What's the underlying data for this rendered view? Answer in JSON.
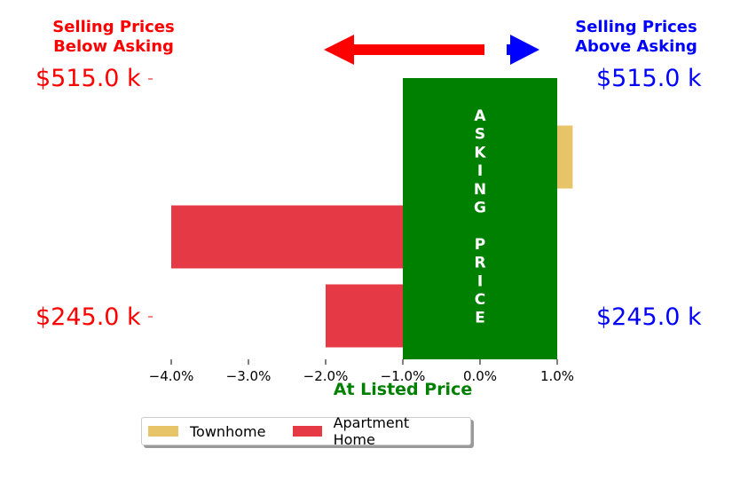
{
  "header": {
    "left_line1": "Selling Prices",
    "left_line2": "Below Asking",
    "right_line1": "Selling Prices",
    "right_line2": "Above Asking"
  },
  "price_labels": {
    "left_top": "$515.0 k",
    "left_bottom": "$245.0 k",
    "right_top": "$515.0 k",
    "right_bottom": "$245.0 k"
  },
  "colors": {
    "below": "#ff0000",
    "above": "#0000ff",
    "asking": "#008000",
    "townhome": "#e8c468",
    "apartment": "#e63946"
  },
  "chart_data": {
    "type": "bar",
    "orientation": "horizontal",
    "xlabel": "At Listed Price",
    "xlim": [
      -4.6,
      1.2
    ],
    "x_ticks": [
      -4.0,
      -3.0,
      -2.0,
      -1.0,
      0.0,
      1.0
    ],
    "x_tick_labels": [
      "−4.0%",
      "−3.0%",
      "−2.0%",
      "−1.0%",
      "0.0%",
      "1.0%"
    ],
    "asking_band": {
      "label": "ASKING PRICE",
      "x_range": [
        -1.0,
        1.0
      ]
    },
    "series": [
      {
        "name": "Townhome",
        "color": "#e8c468",
        "bars": [
          {
            "row": 0,
            "value": 1.2
          }
        ]
      },
      {
        "name": "Apartment Home",
        "color": "#e63946",
        "bars": [
          {
            "row": 1,
            "value": -4.0
          },
          {
            "row": 2,
            "value": -2.0
          }
        ]
      }
    ],
    "legend": "bottom-center",
    "grid": false
  }
}
